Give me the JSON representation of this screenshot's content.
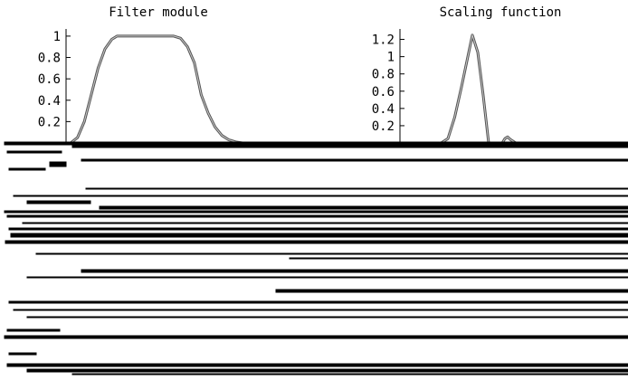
{
  "chart_data": [
    {
      "type": "line",
      "title": "Filter module",
      "xlabel": "",
      "ylabel": "",
      "ylim": [
        0,
        1.05
      ],
      "yticks": [
        "0.2",
        "0.4",
        "0.6",
        "0.8",
        "1"
      ],
      "ytick_values": [
        0.2,
        0.4,
        0.6,
        0.8,
        1.0
      ],
      "grid": false,
      "series": [
        {
          "x": [
            0.0,
            0.04,
            0.08,
            0.12,
            0.16,
            0.2,
            0.24,
            0.27,
            0.3,
            0.34,
            0.38,
            0.42,
            0.46,
            0.5,
            0.55,
            0.6,
            0.64,
            0.68,
            0.72,
            0.74,
            0.76,
            0.8,
            0.84,
            0.88,
            0.92,
            0.96,
            1.0
          ],
          "values": [
            0.0,
            0.05,
            0.2,
            0.45,
            0.7,
            0.88,
            0.97,
            1.0,
            1.0,
            1.0,
            1.0,
            1.0,
            1.0,
            1.0,
            1.0,
            1.0,
            0.98,
            0.9,
            0.75,
            0.6,
            0.45,
            0.28,
            0.15,
            0.07,
            0.03,
            0.01,
            0.0
          ]
        }
      ]
    },
    {
      "type": "line",
      "title": "Scaling function",
      "xlabel": "",
      "ylabel": "",
      "ylim": [
        0,
        1.3
      ],
      "yticks": [
        "0.2",
        "0.4",
        "0.6",
        "0.8",
        "1",
        "1.2"
      ],
      "ytick_values": [
        0.2,
        0.4,
        0.6,
        0.8,
        1.0,
        1.2
      ],
      "grid": false,
      "series": [
        {
          "x": [
            0.0,
            0.1,
            0.2,
            0.25,
            0.3,
            0.35,
            0.4,
            0.44,
            0.48,
            0.52,
            0.56,
            0.6,
            0.65,
            0.7,
            0.72,
            0.74,
            0.76,
            0.8,
            0.9,
            1.0
          ],
          "values": [
            0.0,
            0.0,
            0.0,
            0.0,
            0.05,
            0.3,
            0.65,
            0.95,
            1.25,
            1.05,
            0.55,
            0.0,
            0.0,
            0.0,
            0.05,
            0.07,
            0.04,
            0.0,
            0.0,
            0.0
          ]
        }
      ]
    }
  ]
}
